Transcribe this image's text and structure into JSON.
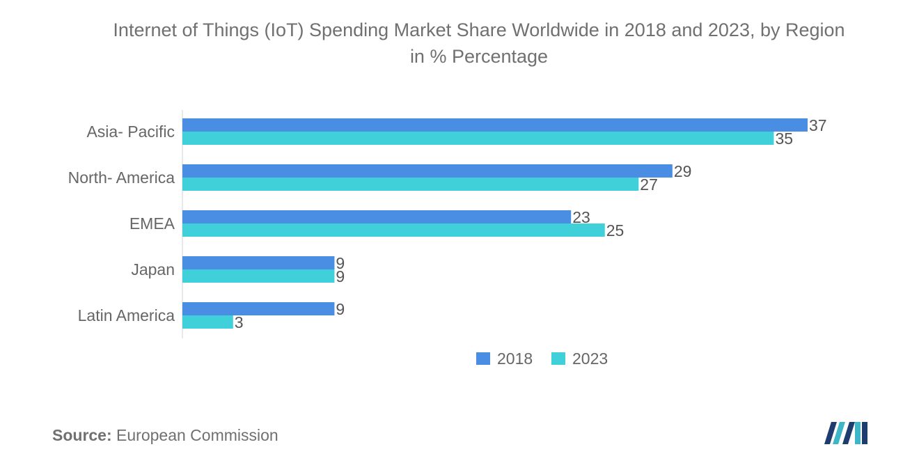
{
  "chart_data": {
    "type": "bar",
    "orientation": "horizontal",
    "title": "Internet of Things (IoT) Spending Market Share Worldwide in 2018 and 2023, by Region",
    "subtitle": "in % Percentage",
    "categories": [
      "Asia- Pacific",
      "North- America",
      "EMEA",
      "Japan",
      "Latin America"
    ],
    "series": [
      {
        "name": "2018",
        "values": [
          37,
          29,
          23,
          9,
          9
        ],
        "color": "#4a8ee3"
      },
      {
        "name": "2023",
        "values": [
          35,
          27,
          25,
          9,
          3
        ],
        "color": "#3fd0d9"
      }
    ],
    "xlim": [
      0,
      37
    ],
    "grid": false,
    "legend": "bottom-center",
    "data_labels": true
  },
  "source": {
    "label": "Source:",
    "text": "European Commission"
  },
  "logo": {
    "icon": "mordor-intelligence-logo-icon",
    "colors": [
      "#1f3c6e",
      "#3fb6c8"
    ]
  }
}
